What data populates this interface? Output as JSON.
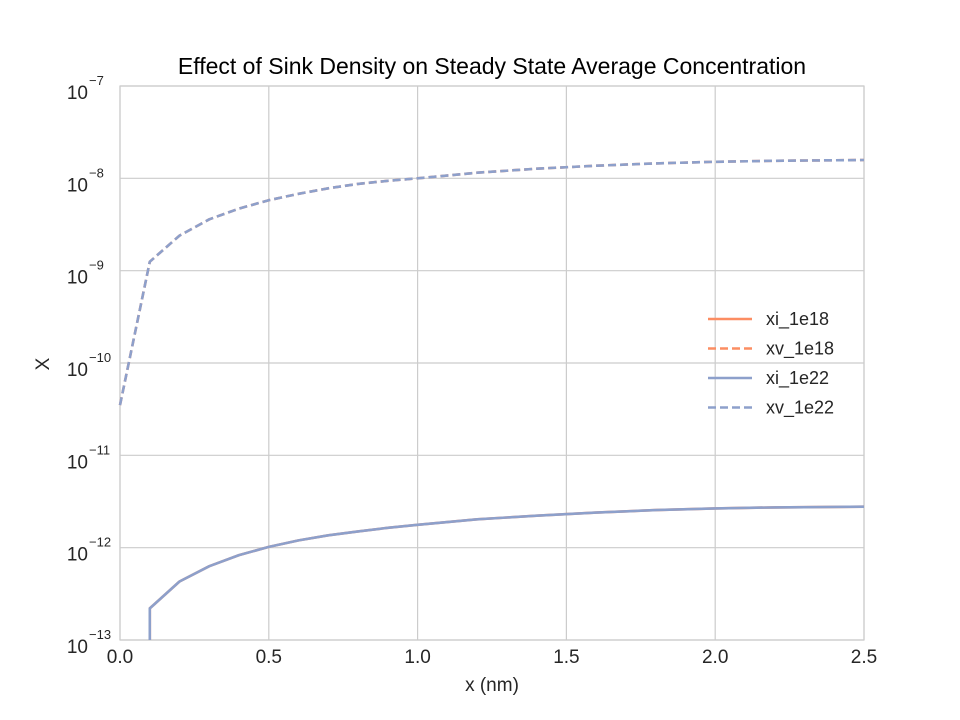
{
  "chart_data": {
    "type": "line",
    "title": "Effect of Sink Density on Steady State Average Concentration",
    "xlabel": "x (nm)",
    "ylabel": "X",
    "xlim": [
      0,
      2.5
    ],
    "ylim": [
      1e-13,
      1e-07
    ],
    "yscale": "log",
    "grid": true,
    "legend_position": "right",
    "xticks": [
      "0.0",
      "0.5",
      "1.0",
      "1.5",
      "2.0",
      "2.5"
    ],
    "yticks": [
      {
        "base": "10",
        "exp": "−13",
        "value": 1e-13
      },
      {
        "base": "10",
        "exp": "−12",
        "value": 1e-12
      },
      {
        "base": "10",
        "exp": "−11",
        "value": 1e-11
      },
      {
        "base": "10",
        "exp": "−10",
        "value": 1e-10
      },
      {
        "base": "10",
        "exp": "−9",
        "value": 1e-09
      },
      {
        "base": "10",
        "exp": "−8",
        "value": 1e-08
      },
      {
        "base": "10",
        "exp": "−7",
        "value": 1e-07
      }
    ],
    "series": [
      {
        "name": "xi_1e18",
        "color": "#fc8d62",
        "dash": "solid",
        "x": [
          0.1,
          0.1,
          0.2,
          0.3,
          0.4,
          0.5,
          0.6,
          0.7,
          0.8,
          0.9,
          1.0,
          1.2,
          1.4,
          1.6,
          1.8,
          2.0,
          2.2,
          2.5
        ],
        "y": [
          1e-13,
          2.2e-13,
          4.3e-13,
          6.3e-13,
          8.3e-13,
          1.02e-12,
          1.2e-12,
          1.36e-12,
          1.5e-12,
          1.64e-12,
          1.77e-12,
          2.03e-12,
          2.22e-12,
          2.4e-12,
          2.55e-12,
          2.66e-12,
          2.73e-12,
          2.78e-12
        ]
      },
      {
        "name": "xv_1e18",
        "color": "#fc8d62",
        "dash": "dashed",
        "x": [
          0.0,
          0.1,
          0.2,
          0.3,
          0.4,
          0.5,
          0.6,
          0.7,
          0.8,
          0.9,
          1.0,
          1.2,
          1.4,
          1.6,
          1.8,
          2.0,
          2.2,
          2.5
        ],
        "y": [
          3.5e-11,
          1.25e-09,
          2.4e-09,
          3.6e-09,
          4.7e-09,
          5.8e-09,
          6.8e-09,
          7.8e-09,
          8.7e-09,
          9.4e-09,
          1e-08,
          1.15e-08,
          1.27e-08,
          1.37e-08,
          1.45e-08,
          1.51e-08,
          1.55e-08,
          1.58e-08
        ]
      },
      {
        "name": "xi_1e22",
        "color": "#8da0cb",
        "dash": "solid",
        "x": [
          0.1,
          0.1,
          0.2,
          0.3,
          0.4,
          0.5,
          0.6,
          0.7,
          0.8,
          0.9,
          1.0,
          1.2,
          1.4,
          1.6,
          1.8,
          2.0,
          2.2,
          2.5
        ],
        "y": [
          1e-13,
          2.2e-13,
          4.3e-13,
          6.3e-13,
          8.3e-13,
          1.02e-12,
          1.2e-12,
          1.36e-12,
          1.5e-12,
          1.64e-12,
          1.77e-12,
          2.03e-12,
          2.22e-12,
          2.4e-12,
          2.55e-12,
          2.66e-12,
          2.73e-12,
          2.78e-12
        ]
      },
      {
        "name": "xv_1e22",
        "color": "#8da0cb",
        "dash": "dashed",
        "x": [
          0.0,
          0.1,
          0.2,
          0.3,
          0.4,
          0.5,
          0.6,
          0.7,
          0.8,
          0.9,
          1.0,
          1.2,
          1.4,
          1.6,
          1.8,
          2.0,
          2.2,
          2.5
        ],
        "y": [
          3.5e-11,
          1.25e-09,
          2.4e-09,
          3.6e-09,
          4.7e-09,
          5.8e-09,
          6.8e-09,
          7.8e-09,
          8.7e-09,
          9.4e-09,
          1e-08,
          1.15e-08,
          1.27e-08,
          1.37e-08,
          1.45e-08,
          1.51e-08,
          1.55e-08,
          1.58e-08
        ]
      }
    ]
  }
}
